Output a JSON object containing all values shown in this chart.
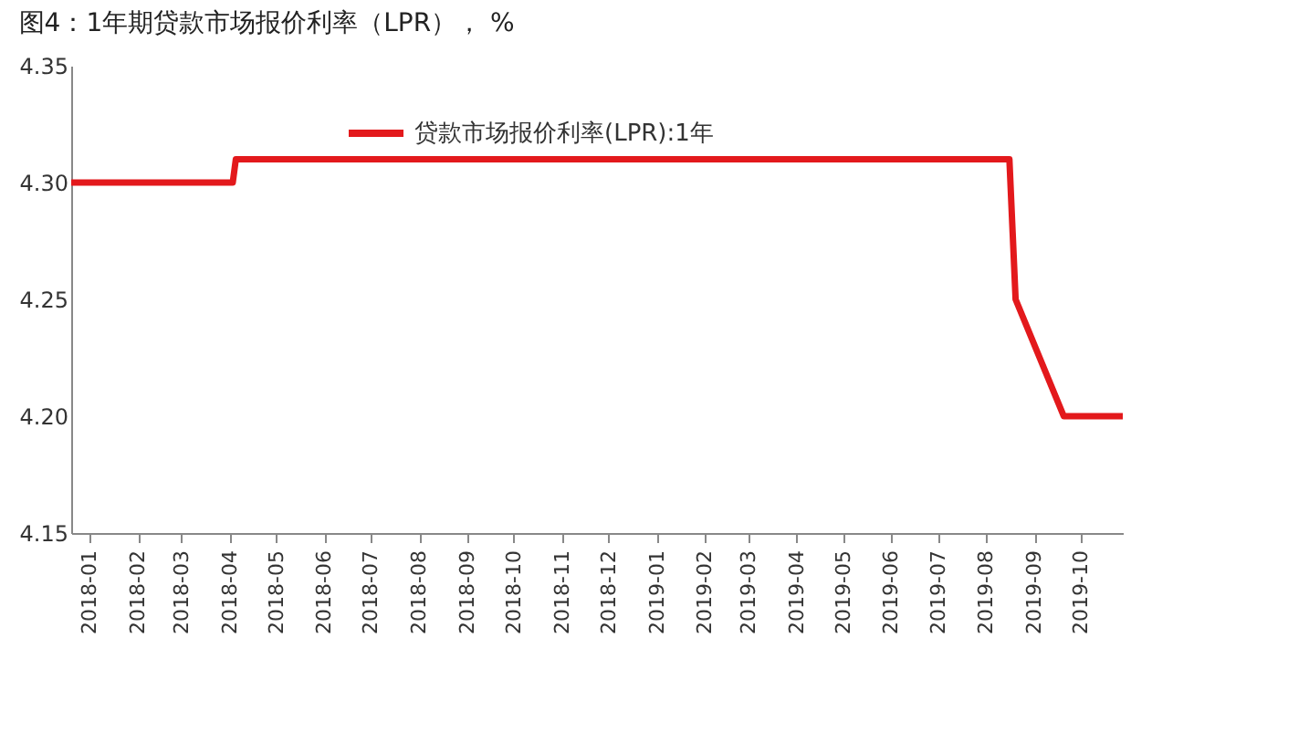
{
  "chart_data": {
    "type": "line",
    "title": "图4：1年期贷款市场报价利率（LPR）， %",
    "legend": "top",
    "grid": false,
    "marker": "none",
    "line_style": "solid",
    "ylim": [
      4.15,
      4.35
    ],
    "yticks": [
      {
        "value": 4.15,
        "label": "4.15"
      },
      {
        "value": 4.2,
        "label": "4.20"
      },
      {
        "value": 4.25,
        "label": "4.25"
      },
      {
        "value": 4.3,
        "label": "4.30"
      },
      {
        "value": 4.35,
        "label": "4.35"
      }
    ],
    "xlim": [
      "2017-12-20",
      "2019-10-28"
    ],
    "xticks": [
      "2018-01",
      "2018-02",
      "2018-03",
      "2018-04",
      "2018-05",
      "2018-06",
      "2018-07",
      "2018-08",
      "2018-09",
      "2018-10",
      "2018-11",
      "2018-12",
      "2019-01",
      "2019-02",
      "2019-03",
      "2019-04",
      "2019-05",
      "2019-06",
      "2019-07",
      "2019-08",
      "2019-09",
      "2019-10"
    ],
    "series": [
      {
        "name": "贷款市场报价利率(LPR):1年",
        "color": "#e3191c",
        "x": [
          "2017-12-20",
          "2018-04-03",
          "2018-04-05",
          "2019-08-16",
          "2019-08-20",
          "2019-09-20",
          "2019-10-28"
        ],
        "values": [
          4.3,
          4.3,
          4.31,
          4.31,
          4.25,
          4.2,
          4.2
        ]
      }
    ]
  }
}
